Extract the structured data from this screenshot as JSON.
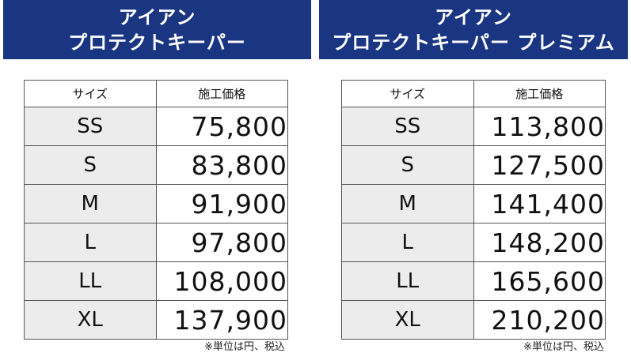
{
  "colors": {
    "banner": "#1a3682",
    "size_cell": "#ececec"
  },
  "tables": [
    {
      "title_line1": "アイアン",
      "title_line2": "プロテクトキーパー",
      "col_size": "サイズ",
      "col_price": "施工価格",
      "rows": [
        {
          "size": "SS",
          "price": "75,800"
        },
        {
          "size": "S",
          "price": "83,800"
        },
        {
          "size": "M",
          "price": "91,900"
        },
        {
          "size": "L",
          "price": "97,800"
        },
        {
          "size": "LL",
          "price": "108,000"
        },
        {
          "size": "XL",
          "price": "137,900"
        }
      ],
      "note": "※単位は円、税込"
    },
    {
      "title_line1": "アイアン",
      "title_line2": "プロテクトキーパー プレミアム",
      "col_size": "サイズ",
      "col_price": "施工価格",
      "rows": [
        {
          "size": "SS",
          "price": "113,800"
        },
        {
          "size": "S",
          "price": "127,500"
        },
        {
          "size": "M",
          "price": "141,400"
        },
        {
          "size": "L",
          "price": "148,200"
        },
        {
          "size": "LL",
          "price": "165,600"
        },
        {
          "size": "XL",
          "price": "210,200"
        }
      ],
      "note": "※単位は円、税込"
    }
  ]
}
